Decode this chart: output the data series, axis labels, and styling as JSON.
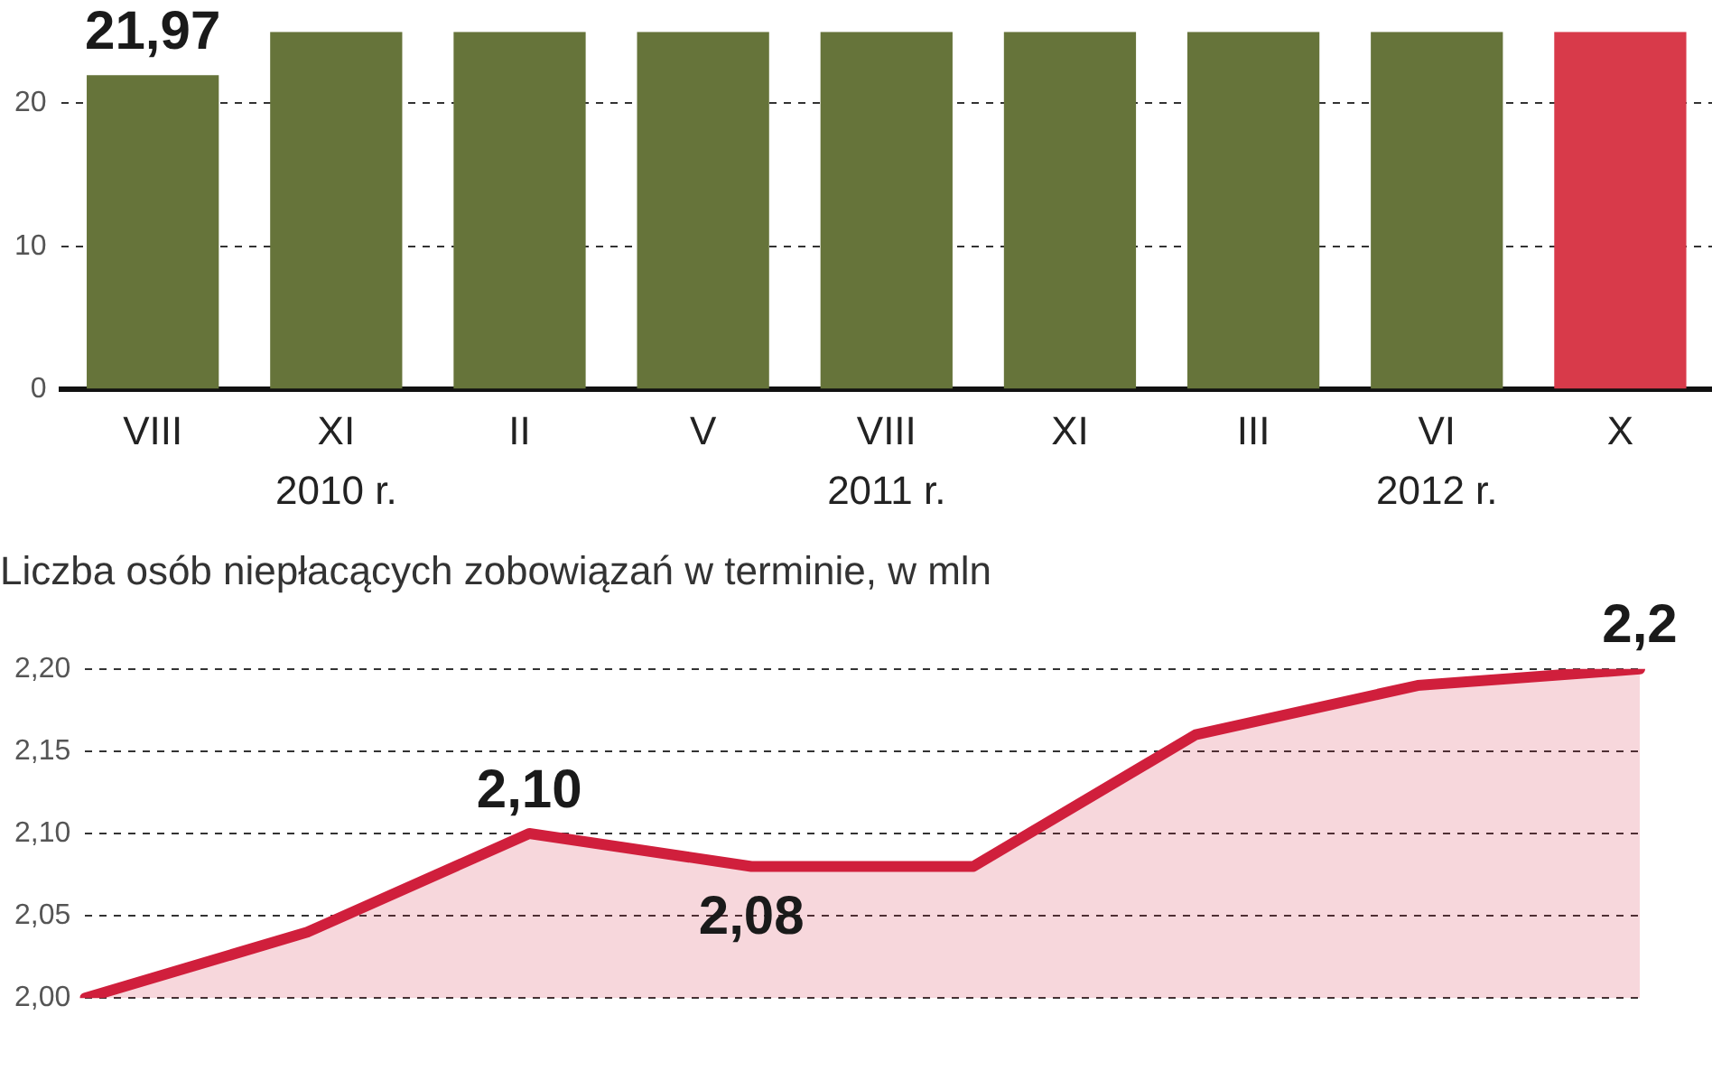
{
  "chart_data": [
    {
      "type": "bar",
      "categories": [
        "VIII",
        "XI",
        "II",
        "V",
        "VIII",
        "XI",
        "III",
        "VI",
        "X"
      ],
      "values": [
        21.97,
        25,
        25,
        25,
        25,
        25,
        25,
        25,
        25
      ],
      "colors": [
        "#66743a",
        "#66743a",
        "#66743a",
        "#66743a",
        "#66743a",
        "#66743a",
        "#66743a",
        "#66743a",
        "#d83a4a"
      ],
      "value_labels": [
        "21,97",
        null,
        null,
        null,
        null,
        null,
        null,
        null,
        null
      ],
      "ylim": [
        0,
        25
      ],
      "yticks": [
        0,
        10,
        20
      ],
      "grid": "y",
      "annotations": [
        "2010 r.",
        "2011 r.",
        "2012 r."
      ]
    },
    {
      "type": "area",
      "title": "Liczba osób niepłacących zobowiązań w terminie, w mln",
      "categories": [
        null,
        null,
        null,
        null,
        null,
        null,
        null,
        null
      ],
      "series": [
        {
          "color": "#d01f3c",
          "values": [
            2.0,
            2.04,
            2.1,
            2.08,
            2.08,
            2.16,
            2.19,
            2.2
          ],
          "value_labels": [
            null,
            null,
            "2,10",
            "2,08",
            null,
            null,
            null,
            "2,2"
          ]
        }
      ],
      "ylim": [
        2.0,
        2.2
      ],
      "yticks": [
        {
          "value": 2.0,
          "label": "2,00"
        },
        {
          "value": 2.05,
          "label": "2,05"
        },
        {
          "value": 2.1,
          "label": "2,10"
        },
        {
          "value": 2.15,
          "label": "2,15"
        },
        {
          "value": 2.2,
          "label": "2,20"
        }
      ],
      "grid": "y"
    }
  ]
}
